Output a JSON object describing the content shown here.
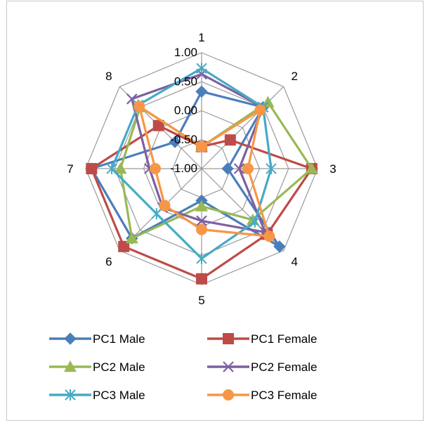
{
  "chart_data": {
    "type": "radar",
    "title": "",
    "categories": [
      "1",
      "2",
      "3",
      "4",
      "5",
      "6",
      "7",
      "8"
    ],
    "ylim": [
      -1.0,
      1.0
    ],
    "ticks": [
      1.0,
      0.5,
      0.0,
      -0.5,
      -1.0
    ],
    "tick_labels": [
      "1.00",
      "0.50",
      "0.00",
      "-0.50",
      "-1.00"
    ],
    "grid": true,
    "legend_position": "bottom",
    "series": [
      {
        "name": "PC1 Male",
        "color": "#4a7ebb",
        "marker": "diamond",
        "values": [
          0.33,
          0.5,
          -0.55,
          0.9,
          -0.45,
          0.7,
          0.9,
          -0.35
        ]
      },
      {
        "name": "PC1 Female",
        "color": "#be4b48",
        "marker": "square",
        "values": [
          -0.62,
          -0.3,
          0.9,
          0.6,
          0.9,
          0.9,
          0.9,
          0.05
        ]
      },
      {
        "name": "PC2 Male",
        "color": "#98b954",
        "marker": "triangle",
        "values": [
          -0.62,
          0.62,
          0.9,
          0.25,
          -0.35,
          0.7,
          0.4,
          0.5
        ]
      },
      {
        "name": "PC2 Female",
        "color": "#7d60a0",
        "marker": "x",
        "values": [
          0.63,
          0.5,
          -0.35,
          0.55,
          -0.1,
          -0.05,
          -0.1,
          0.7
        ]
      },
      {
        "name": "PC3 Male",
        "color": "#46aac5",
        "marker": "star",
        "values": [
          0.73,
          0.5,
          0.2,
          0.3,
          0.55,
          0.1,
          0.55,
          0.55
        ]
      },
      {
        "name": "PC3 Female",
        "color": "#f79646",
        "marker": "circle",
        "values": [
          -0.62,
          0.43,
          -0.2,
          0.65,
          0.05,
          -0.1,
          -0.2,
          0.52
        ]
      }
    ]
  }
}
